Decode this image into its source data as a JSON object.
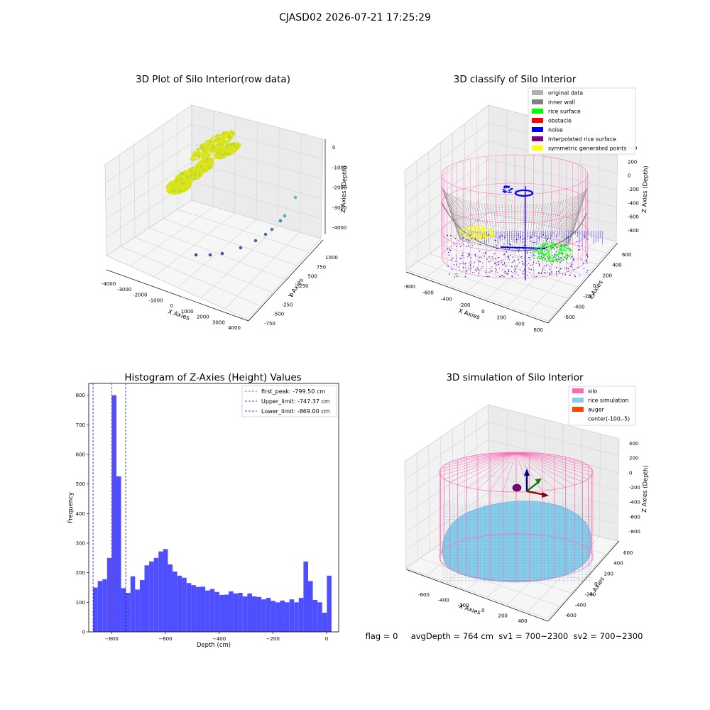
{
  "figure": {
    "suptitle": "CJASD02 2026-07-21 17:25:29",
    "status_line": {
      "flag": "flag = 0",
      "avg_depth": "avgDepth = 764 cm",
      "sv1": "sv1 = 700~2300",
      "sv2": "sv2 = 700~2300"
    }
  },
  "colors": {
    "histogram_bar": "#4b4bff",
    "first_peak_line": "#e02020",
    "limit_lines": "#1010c8",
    "silo": "#ff69b4",
    "rice_simulation": "#87ceeb",
    "auger": "#ff4500",
    "inner_wall": "#808080",
    "rice_surface": "#00ff00",
    "noise": "#0000ff",
    "symmetric": "#ffff00",
    "interpolated": "#800080"
  },
  "chart_data": [
    {
      "type": "scatter",
      "projection": "3d",
      "title": "3D Plot of Silo Interior(row data)",
      "xlabel": "X Axies",
      "ylabel": "Y Axies",
      "zlabel": "Z Axies (Depth)",
      "x_ticks": [
        "-4000",
        "-3000",
        "-2000",
        "-1000",
        "0",
        "1000",
        "2000",
        "3000",
        "4000"
      ],
      "y_ticks": [
        "1000",
        "750",
        "500",
        "250",
        "0",
        "-250",
        "-500",
        "-750"
      ],
      "z_ticks": [
        "0",
        "-1000",
        "-2000",
        "-3000",
        "-4000"
      ],
      "grid": true
    },
    {
      "type": "scatter",
      "projection": "3d",
      "title": "3D classify of Silo Interior",
      "xlabel": "X Axies",
      "ylabel": "Y Axies",
      "zlabel": "Z Axies (Depth)",
      "x_ticks": [
        "-800",
        "-600",
        "-400",
        "-200",
        "0",
        "200",
        "400",
        "600"
      ],
      "y_ticks": [
        "600",
        "400",
        "200",
        "0",
        "-200",
        "-400",
        "-600"
      ],
      "z_ticks": [
        "400",
        "200",
        "0",
        "-200",
        "-400",
        "-600",
        "-800"
      ],
      "legend": [
        {
          "label": "original data",
          "color": "#b0b0b0"
        },
        {
          "label": "inner wall",
          "color": "#808080"
        },
        {
          "label": "rice surface",
          "color": "#00ff00"
        },
        {
          "label": "obstacle",
          "color": "#ff0000"
        },
        {
          "label": "noise",
          "color": "#0000ff"
        },
        {
          "label": "interpolated rice surface",
          "color": "#800080"
        },
        {
          "label": "symmetric generated points",
          "color": "#ffff00"
        }
      ],
      "legend_position": "top-right",
      "grid": true
    },
    {
      "type": "bar",
      "title": "Histogram of Z-Axies (Height) Values",
      "xlabel": "Depth (cm)",
      "ylabel": "Frequency",
      "xlim": [
        -885,
        45
      ],
      "ylim": [
        0,
        840
      ],
      "x_ticks": [
        -800,
        -600,
        -400,
        -200,
        0
      ],
      "y_ticks": [
        0,
        100,
        200,
        300,
        400,
        500,
        600,
        700,
        800
      ],
      "bin_start": -869,
      "bin_width": 17.4,
      "values": [
        150,
        172,
        178,
        250,
        800,
        526,
        148,
        132,
        188,
        143,
        175,
        225,
        238,
        250,
        272,
        280,
        228,
        204,
        190,
        183,
        165,
        158,
        152,
        153,
        140,
        145,
        135,
        125,
        126,
        137,
        130,
        132,
        120,
        130,
        120,
        118,
        110,
        115,
        105,
        100,
        106,
        100,
        110,
        100,
        115,
        238,
        172,
        108,
        100,
        65,
        190
      ],
      "lines": [
        {
          "label": "first_peak: -799.50 cm",
          "x": -799.5,
          "color": "#e02020"
        },
        {
          "label": "Upper_limit: -747.37 cm",
          "x": -747.37,
          "color": "#1010c8"
        },
        {
          "label": "Lower_limit: -869.00 cm",
          "x": -869.0,
          "color": "#1010c8"
        }
      ],
      "legend_position": "top-right",
      "grid": false
    },
    {
      "type": "scatter",
      "projection": "3d",
      "title": "3D simulation of Silo Interior",
      "xlabel": "X Axies",
      "ylabel": "Y Axies",
      "zlabel": "Z Axies (Depth)",
      "x_ticks": [
        "-600",
        "-400",
        "-200",
        "0",
        "200",
        "400"
      ],
      "y_ticks": [
        "600",
        "400",
        "200",
        "0",
        "-200",
        "-400",
        "-600"
      ],
      "z_ticks": [
        "400",
        "200",
        "0",
        "-200",
        "-400",
        "-600",
        "-800"
      ],
      "legend": [
        {
          "label": "silo",
          "color": "#ff69b4"
        },
        {
          "label": "rice simulation",
          "color": "#87ceeb"
        },
        {
          "label": "auger",
          "color": "#ff4500"
        },
        {
          "label": "center(-100,-5)",
          "color": ""
        }
      ],
      "legend_position": "top-right",
      "grid": true
    }
  ]
}
